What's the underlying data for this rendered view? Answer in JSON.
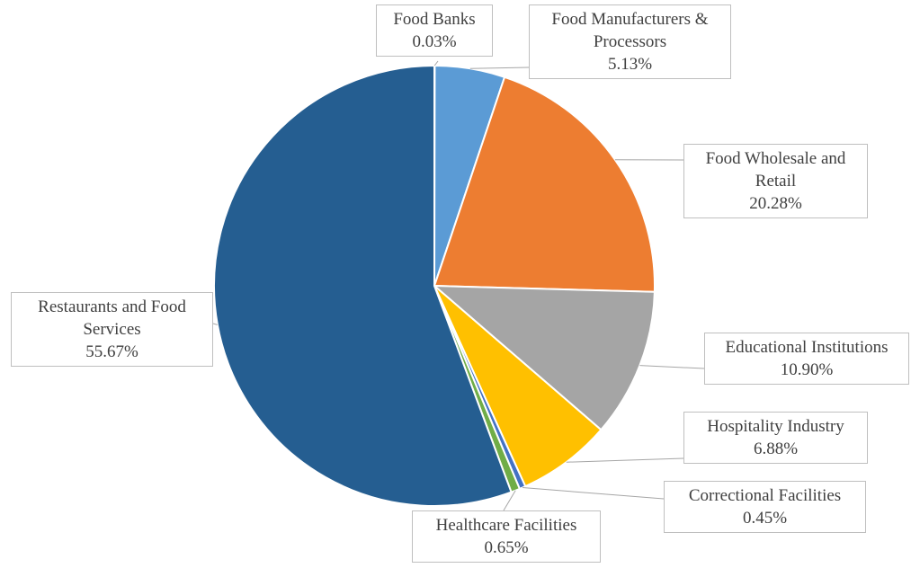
{
  "chart_data": {
    "type": "pie",
    "categories": [
      "Food Banks",
      "Food Manufacturers & Processors",
      "Food Wholesale and Retail",
      "Educational Institutions",
      "Hospitality Industry",
      "Correctional Facilities",
      "Healthcare Facilities",
      "Restaurants and Food Services"
    ],
    "values": [
      0.03,
      5.13,
      20.28,
      10.9,
      6.88,
      0.45,
      0.65,
      55.67
    ],
    "value_labels": [
      "0.03%",
      "5.13%",
      "20.28%",
      "10.90%",
      "6.88%",
      "0.45%",
      "0.65%",
      "55.67%"
    ],
    "colors": [
      "#264478",
      "#5b9bd5",
      "#ed7d31",
      "#a5a5a5",
      "#ffc000",
      "#4472c4",
      "#70ad47",
      "#255e91"
    ]
  }
}
